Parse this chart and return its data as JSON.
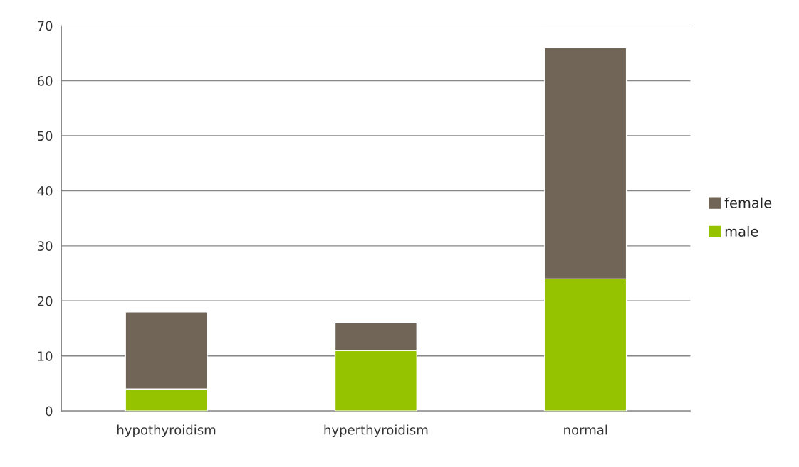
{
  "chart_data": {
    "type": "bar",
    "stacked": true,
    "categories": [
      "hypothyroidism",
      "hyperthyroidism",
      "normal"
    ],
    "series": [
      {
        "name": "male",
        "color": "#96c300",
        "values": [
          4,
          11,
          24
        ]
      },
      {
        "name": "female",
        "color": "#706556",
        "values": [
          14,
          5,
          42
        ]
      }
    ],
    "ylim": [
      0,
      70
    ],
    "yticks": [
      0,
      10,
      20,
      30,
      40,
      50,
      60,
      70
    ],
    "grid": "y",
    "legend": "right"
  }
}
